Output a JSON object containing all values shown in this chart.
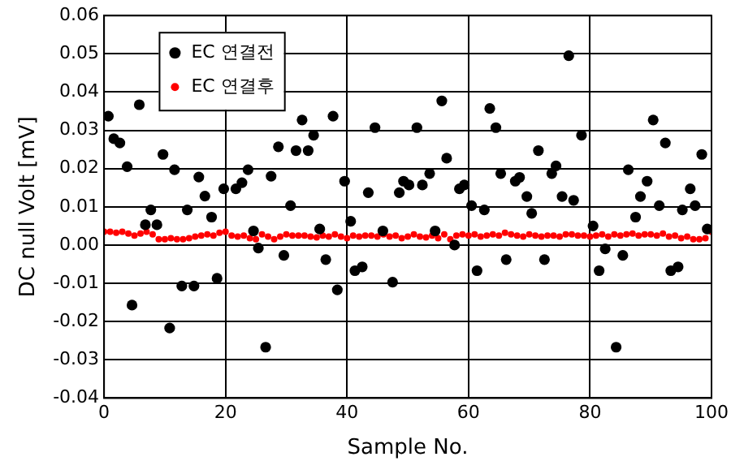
{
  "chart_data": {
    "type": "scatter",
    "xlabel": "Sample No.",
    "ylabel": "DC null Volt [mV]",
    "xlim": [
      0,
      100
    ],
    "xticks": [
      0,
      20,
      40,
      60,
      80,
      100
    ],
    "ylim": [
      -0.04,
      0.06
    ],
    "yticks": [
      {
        "value": -0.04,
        "label": "-0.04"
      },
      {
        "value": -0.03,
        "label": "-0.03"
      },
      {
        "value": -0.02,
        "label": "-0.02"
      },
      {
        "value": -0.01,
        "label": "-0.01"
      },
      {
        "value": 0,
        "label": "0.00"
      },
      {
        "value": 0.01,
        "label": "0.01"
      },
      {
        "value": 0.02,
        "label": "0.02"
      },
      {
        "value": 0.03,
        "label": "0.03"
      },
      {
        "value": 0.04,
        "label": "0.04"
      },
      {
        "value": 0.05,
        "label": "0.05"
      },
      {
        "value": 0.06,
        "label": "0.06"
      }
    ],
    "grid": true,
    "legend": "top left",
    "marker": "circle",
    "series": [
      {
        "name": "EC 연결전",
        "color": "#000000",
        "x": [
          0.7,
          1.6,
          2.6,
          3.8,
          4.6,
          5.8,
          6.8,
          7.7,
          8.7,
          9.7,
          10.8,
          11.6,
          12.8,
          13.7,
          14.8,
          15.6,
          16.6,
          17.7,
          18.6,
          19.7,
          21.7,
          22.7,
          23.7,
          24.6,
          25.4,
          26.6,
          27.5,
          28.7,
          29.6,
          30.7,
          31.6,
          32.6,
          33.6,
          34.5,
          35.5,
          36.5,
          37.7,
          38.4,
          39.6,
          40.6,
          41.3,
          42.5,
          43.5,
          44.6,
          45.9,
          47.5,
          48.6,
          49.3,
          50.2,
          51.5,
          52.4,
          53.6,
          54.5,
          55.6,
          56.4,
          57.7,
          58.5,
          59.3,
          60.5,
          61.4,
          62.6,
          63.5,
          64.5,
          65.3,
          66.2,
          67.7,
          68.4,
          69.6,
          70.4,
          71.5,
          72.5,
          73.7,
          74.4,
          75.4,
          76.5,
          77.3,
          78.6,
          80.5,
          81.5,
          82.5,
          84.3,
          85.4,
          86.3,
          87.5,
          88.3,
          89.4,
          90.4,
          91.4,
          92.4,
          93.3,
          94.5,
          95.2,
          96.5,
          97.3,
          98.4,
          99.3
        ],
        "values": [
          0.0337,
          0.0278,
          0.0267,
          0.0205,
          -0.0157,
          0.0367,
          0.0053,
          0.0092,
          0.0053,
          0.0237,
          -0.0217,
          0.0197,
          -0.0107,
          0.0092,
          -0.0107,
          0.0178,
          0.0128,
          0.0073,
          -0.0087,
          0.0147,
          0.0147,
          0.0163,
          0.0197,
          0.0037,
          -0.0008,
          -0.0267,
          0.018,
          0.0257,
          -0.0027,
          0.0103,
          0.0247,
          0.0327,
          0.0247,
          0.0287,
          0.0042,
          -0.0038,
          0.0337,
          -0.0117,
          0.0167,
          0.0062,
          -0.0067,
          -0.0057,
          0.0137,
          0.0307,
          0.0037,
          -0.0097,
          0.0137,
          0.0167,
          0.0157,
          0.0307,
          0.0157,
          0.0187,
          0.0037,
          0.0377,
          0.0227,
          0.0,
          0.0147,
          0.0157,
          0.0103,
          -0.0067,
          0.0092,
          0.0357,
          0.0307,
          0.0187,
          -0.0038,
          0.0167,
          0.0177,
          0.0127,
          0.0083,
          0.0247,
          -0.0038,
          0.0187,
          0.0207,
          0.0127,
          0.0495,
          0.0117,
          0.0287,
          0.005,
          -0.0067,
          -0.001,
          -0.0267,
          -0.0027,
          0.0197,
          0.0073,
          0.0127,
          0.0167,
          0.0327,
          0.0103,
          0.0267,
          -0.0067,
          -0.0057,
          0.0092,
          0.0147,
          0.0103,
          0.0237,
          0.0042
        ]
      },
      {
        "name": "EC 연결후",
        "color": "#ff0000",
        "x": [
          0,
          1,
          2,
          3,
          4,
          5,
          6,
          7,
          8,
          9,
          10,
          11,
          12,
          13,
          14,
          15,
          16,
          17,
          18,
          19,
          20,
          21,
          22,
          23,
          24,
          25,
          26,
          27,
          28,
          29,
          30,
          31,
          32,
          33,
          34,
          35,
          36,
          37,
          38,
          39,
          40,
          41,
          42,
          43,
          44,
          45,
          46,
          47,
          48,
          49,
          50,
          51,
          52,
          53,
          54,
          55,
          56,
          57,
          58,
          59,
          60,
          61,
          62,
          63,
          64,
          65,
          66,
          67,
          68,
          69,
          70,
          71,
          72,
          73,
          74,
          75,
          76,
          77,
          78,
          79,
          80,
          81,
          82,
          83,
          84,
          85,
          86,
          87,
          88,
          89,
          90,
          91,
          92,
          93,
          94,
          95,
          96,
          97,
          98,
          99,
          100
        ],
        "values": [
          0.0035,
          0.0035,
          0.0032,
          0.0035,
          0.003,
          0.0025,
          0.003,
          0.0035,
          0.0028,
          0.0015,
          0.0015,
          0.0018,
          0.0015,
          0.0015,
          0.0018,
          0.0022,
          0.0025,
          0.0028,
          0.0025,
          0.0032,
          0.0035,
          0.0025,
          0.0022,
          0.0025,
          0.0018,
          0.0015,
          0.0028,
          0.0022,
          0.0015,
          0.0022,
          0.0028,
          0.0025,
          0.0025,
          0.0025,
          0.0022,
          0.002,
          0.0025,
          0.0022,
          0.0028,
          0.0022,
          0.0018,
          0.0025,
          0.0022,
          0.0025,
          0.0025,
          0.0022,
          0.0028,
          0.0022,
          0.0025,
          0.0018,
          0.0022,
          0.0028,
          0.0022,
          0.002,
          0.0025,
          0.0018,
          0.0028,
          0.0015,
          0.0025,
          0.0028,
          0.0025,
          0.0028,
          0.0022,
          0.0025,
          0.0028,
          0.0025,
          0.0032,
          0.0028,
          0.0025,
          0.0022,
          0.0028,
          0.0025,
          0.0022,
          0.0025,
          0.0025,
          0.0022,
          0.0028,
          0.0028,
          0.0025,
          0.0025,
          0.0022,
          0.0025,
          0.0028,
          0.0022,
          0.0028,
          0.0025,
          0.0028,
          0.003,
          0.0025,
          0.0028,
          0.0028,
          0.0025,
          0.003,
          0.0022,
          0.0025,
          0.0018,
          0.0022,
          0.0015,
          0.0015,
          0.0018,
          0.0035
        ]
      }
    ]
  }
}
